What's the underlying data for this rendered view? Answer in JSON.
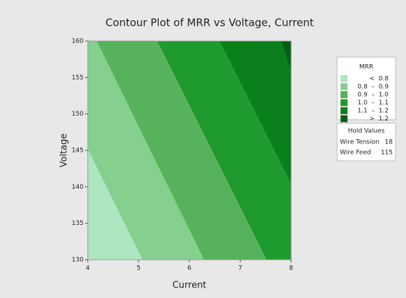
{
  "chart_data": {
    "type": "contour",
    "title": "Contour Plot of MRR vs Voltage, Current",
    "xlabel": "Current",
    "ylabel": "Voltage",
    "xlim": [
      4,
      8
    ],
    "ylim": [
      130,
      160
    ],
    "xticks": [
      4,
      5,
      6,
      7,
      8
    ],
    "yticks": [
      130,
      135,
      140,
      145,
      150,
      155,
      160
    ],
    "base_color": "#aee6c2",
    "contours": [
      {
        "level": 0.8,
        "x": [
          4,
          5.08
        ],
        "y": [
          145.2,
          130
        ],
        "color": "#85cf8f"
      },
      {
        "level": 0.9,
        "x": [
          4.18,
          6.29
        ],
        "y": [
          160,
          130
        ],
        "color": "#56b35b"
      },
      {
        "level": 1.0,
        "x": [
          5.37,
          7.52
        ],
        "y": [
          160,
          130
        ],
        "color": "#1f9a2e"
      },
      {
        "level": 1.1,
        "x": [
          6.6,
          8
        ],
        "y": [
          160,
          140.5
        ],
        "color": "#0a7f1b"
      },
      {
        "level": 1.2,
        "x": [
          7.81,
          8
        ],
        "y": [
          160,
          156
        ],
        "color": "#045e14"
      }
    ],
    "legend": {
      "title": "MRR",
      "items": [
        {
          "label": "<  0.8",
          "color": "#aee6c2"
        },
        {
          "label": "0.8  –  0.9",
          "color": "#85cf8f"
        },
        {
          "label": "0.9  –  1.0",
          "color": "#56b35b"
        },
        {
          "label": "1.0  –  1.1",
          "color": "#1f9a2e"
        },
        {
          "label": "1.1  –  1.2",
          "color": "#0a7f1b"
        },
        {
          "label": ">  1.2",
          "color": "#045e14"
        }
      ]
    },
    "hold_values": {
      "title": "Hold Values",
      "rows": [
        [
          "Wire Tension",
          18
        ],
        [
          "Wire Feed",
          115
        ]
      ]
    }
  }
}
